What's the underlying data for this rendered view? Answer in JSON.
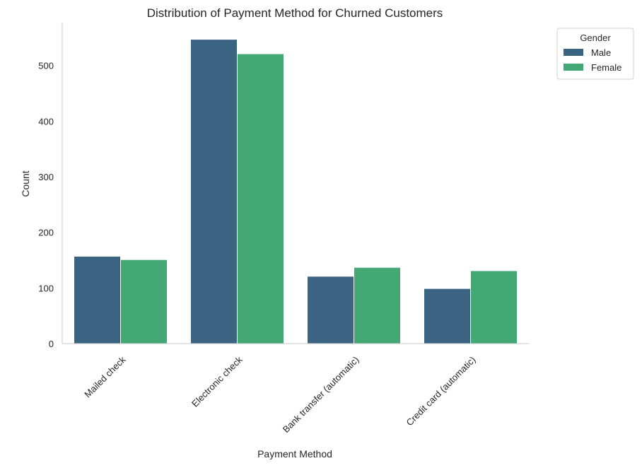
{
  "chart_data": {
    "type": "bar",
    "title": "Distribution of Payment Method for Churned Customers",
    "xlabel": "Payment Method",
    "ylabel": "Count",
    "categories": [
      "Mailed check",
      "Electronic check",
      "Bank transfer (automatic)",
      "Credit card (automatic)"
    ],
    "series": [
      {
        "name": "Male",
        "color": "#3b6382",
        "values": [
          157,
          547,
          121,
          99
        ]
      },
      {
        "name": "Female",
        "color": "#43a874",
        "values": [
          151,
          521,
          137,
          131
        ]
      }
    ],
    "ylim": [
      0,
      577
    ],
    "yticks": [
      0,
      100,
      200,
      300,
      400,
      500
    ],
    "grid": false,
    "legend": {
      "title": "Gender",
      "placement": "outside top-right"
    }
  }
}
